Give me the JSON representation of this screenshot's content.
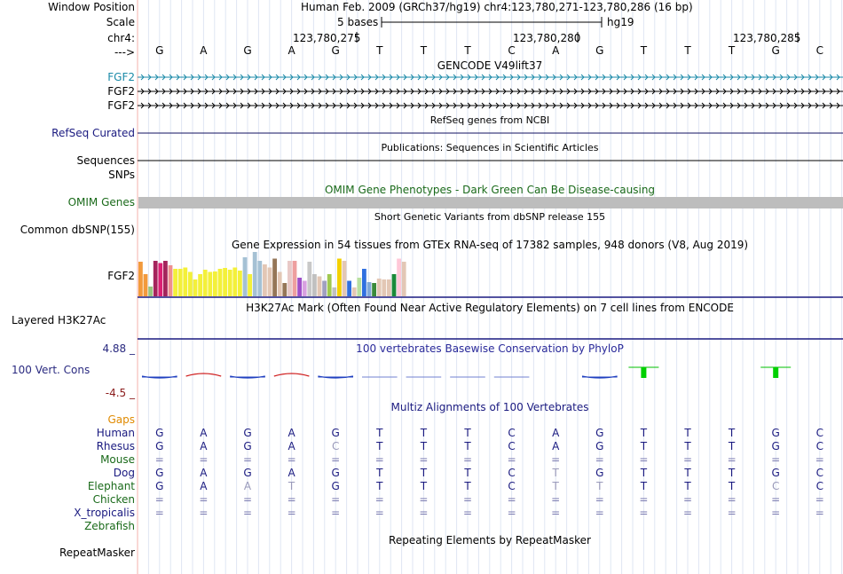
{
  "ruler": {
    "window_position_label": "Window Position",
    "scale_label": "Scale",
    "chrom_label": "chr4:",
    "dna_label": "--->",
    "window_position": "Human Feb. 2009 (GRCh37/hg19)   chr4:123,780,271-123,780,286 (16 bp)",
    "scale_text": "5 bases",
    "assembly": "hg19",
    "positions": [
      "123,780,275",
      "123,780,280",
      "123,780,285"
    ],
    "bases": [
      "G",
      "A",
      "G",
      "A",
      "G",
      "T",
      "T",
      "T",
      "C",
      "A",
      "G",
      "T",
      "T",
      "T",
      "G",
      "C"
    ]
  },
  "tracks": {
    "gencode": {
      "title": "GENCODE V49lift37",
      "genes": [
        "FGF2",
        "FGF2",
        "FGF2"
      ],
      "colors": [
        "#1a8aa8",
        "#000000",
        "#000000"
      ]
    },
    "refseq": {
      "title": "RefSeq genes from NCBI",
      "label": "RefSeq Curated"
    },
    "publications": {
      "title": "Publications: Sequences in Scientific Articles",
      "label": "Sequences"
    },
    "snps_label": "SNPs",
    "omim": {
      "title": "OMIM Gene Phenotypes - Dark Green Can Be Disease-causing",
      "label": "OMIM Genes"
    },
    "dbsnp": {
      "title": "Short Genetic Variants from dbSNP release 155",
      "label": "Common dbSNP(155)"
    },
    "gtex": {
      "title": "Gene Expression in 54 tissues from GTEx RNA-seq of 17382 samples, 948 donors (V8, Aug 2019)",
      "label": "FGF2",
      "values": [
        0.78,
        0.5,
        0.22,
        0.8,
        0.75,
        0.8,
        0.7,
        0.62,
        0.62,
        0.65,
        0.55,
        0.38,
        0.5,
        0.6,
        0.55,
        0.56,
        0.62,
        0.64,
        0.6,
        0.65,
        0.58,
        0.88,
        0.5,
        1.0,
        0.8,
        0.72,
        0.65,
        0.85,
        0.55,
        0.3,
        0.8,
        0.8,
        0.42,
        0.35,
        0.78,
        0.5,
        0.45,
        0.35,
        0.5,
        0.2,
        0.85,
        0.8,
        0.35,
        0.2,
        0.42,
        0.62,
        0.32,
        0.3,
        0.4,
        0.38,
        0.38,
        0.5,
        0.85,
        0.78
      ],
      "colors": [
        "#f29a3c",
        "#f29a3c",
        "#98c47e",
        "#a4245c",
        "#db1f72",
        "#a4245c",
        "#ee8f8f",
        "#f3f03a",
        "#f3f03a",
        "#f3f03a",
        "#f3f03a",
        "#f3f03a",
        "#f3f03a",
        "#f3f03a",
        "#f3f03a",
        "#f3f03a",
        "#f3f03a",
        "#f3f03a",
        "#f3f03a",
        "#f3f03a",
        "#f3f03a",
        "#a5c1d4",
        "#f3f03a",
        "#a5c1d4",
        "#a5c1d4",
        "#e3c7b5",
        "#e3c7b5",
        "#957657",
        "#e3c7b5",
        "#957657",
        "#e8c9c7",
        "#ee9f9f",
        "#a050c8",
        "#d8a0e0",
        "#c8c8c8",
        "#c0c0c0",
        "#e3c7b5",
        "#a0a0c0",
        "#a0c850",
        "#c0c0c0",
        "#f3d000",
        "#e3c7b5",
        "#3070e0",
        "#e3c7b5",
        "#b8e0a0",
        "#3070e0",
        "#80a8d8",
        "#3a8a3a",
        "#e3c7b5",
        "#e3c7b5",
        "#e3c7b5",
        "#1a8a3a",
        "#ffc8d8",
        "#e3c7b5"
      ]
    },
    "h3k27ac": {
      "title": "H3K27Ac Mark (Often Found Near Active Regulatory Elements) on 7 cell lines from ENCODE",
      "label": "Layered H3K27Ac"
    },
    "conservation": {
      "title": "100 vertebrates Basewise Conservation by PhyloP",
      "label": "100 Vert. Cons",
      "max_label": "4.88 _",
      "min_label": "-4.5 _",
      "scores": [
        -0.3,
        0.4,
        -0.15,
        0.35,
        -0.3,
        -0.05,
        -0.05,
        -0.05,
        -0.03,
        0.0,
        -0.15,
        1.8,
        0.0,
        0.0,
        1.8,
        0.0
      ]
    },
    "multiz": {
      "title": "Multiz Alignments of 100 Vertebrates",
      "gaps_label": "Gaps",
      "species": [
        {
          "name": "Human",
          "bases": [
            "G",
            "A",
            "G",
            "A",
            "G",
            "T",
            "T",
            "T",
            "C",
            "A",
            "G",
            "T",
            "T",
            "T",
            "G",
            "C"
          ]
        },
        {
          "name": "Rhesus",
          "bases": [
            "G",
            "A",
            "G",
            "A",
            "C",
            "T",
            "T",
            "T",
            "C",
            "A",
            "G",
            "T",
            "T",
            "T",
            "G",
            "C"
          ]
        },
        {
          "name": "Mouse",
          "bases": [
            "=",
            "=",
            "=",
            "=",
            "=",
            "=",
            "=",
            "=",
            "=",
            "=",
            "=",
            "=",
            "=",
            "=",
            "=",
            "="
          ]
        },
        {
          "name": "Dog",
          "bases": [
            "G",
            "A",
            "G",
            "A",
            "G",
            "T",
            "T",
            "T",
            "C",
            "T",
            "G",
            "T",
            "T",
            "T",
            "G",
            "C"
          ]
        },
        {
          "name": "Elephant",
          "bases": [
            "G",
            "A",
            "A",
            "T",
            "G",
            "T",
            "T",
            "T",
            "C",
            "T",
            "T",
            "T",
            "T",
            "T",
            "C",
            "C"
          ]
        },
        {
          "name": "Chicken",
          "bases": [
            "=",
            "=",
            "=",
            "=",
            "=",
            "=",
            "=",
            "=",
            "=",
            "=",
            "=",
            "=",
            "=",
            "=",
            "=",
            "="
          ]
        },
        {
          "name": "X_tropicalis",
          "bases": [
            "=",
            "=",
            "=",
            "=",
            "=",
            "=",
            "=",
            "=",
            "=",
            "=",
            "=",
            "=",
            "=",
            "=",
            "=",
            "="
          ]
        },
        {
          "name": "Zebrafish",
          "bases": [
            "",
            "",
            "",
            "",
            "",
            "",
            "",
            "",
            "",
            "",
            "",
            "",
            "",
            "",
            "",
            ""
          ]
        }
      ]
    },
    "repeatmasker": {
      "title": "Repeating Elements by RepeatMasker",
      "label": "RepeatMasker"
    }
  }
}
